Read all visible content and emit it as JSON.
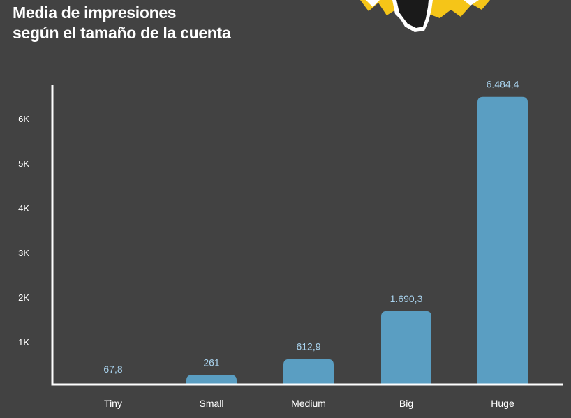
{
  "title": {
    "line1": "Media de impresiones",
    "line2": "según el tamaño de la cuenta"
  },
  "colors": {
    "background": "#424242",
    "bar": "#5a9ec2",
    "data_label": "#a9d3ee",
    "axis": "#ffffff",
    "text": "#ffffff",
    "decoration_yellow": "#f5c518"
  },
  "decoration_icon": "lightbulb-icon",
  "chart_data": {
    "type": "bar",
    "title": "Media de impresiones según el tamaño de la cuenta",
    "xlabel": "",
    "ylabel": "",
    "categories": [
      "Tiny",
      "Small",
      "Medium",
      "Big",
      "Huge"
    ],
    "values": [
      67.8,
      261,
      612.9,
      1690.3,
      6484.4
    ],
    "data_labels": [
      "67,8",
      "261",
      "612,9",
      "1.690,3",
      "6.484,4"
    ],
    "yticks": [
      1000,
      2000,
      3000,
      4000,
      5000,
      6000
    ],
    "ytick_labels": [
      "1K",
      "2K",
      "3K",
      "4K",
      "5K",
      "6K"
    ],
    "ylim": [
      0,
      6500
    ],
    "grid": false,
    "legend": "none"
  }
}
